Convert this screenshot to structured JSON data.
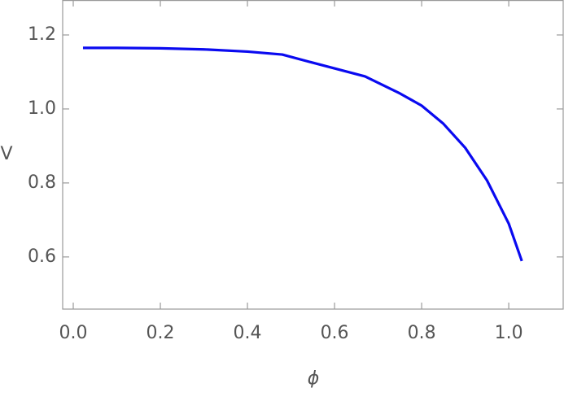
{
  "chart_data": {
    "type": "line",
    "x_label": "ϕ",
    "y_label": "V",
    "x": [
      0.0224,
      0.1,
      0.2,
      0.3,
      0.4,
      0.48,
      0.55,
      0.67,
      0.75,
      0.8,
      0.85,
      0.9,
      0.95,
      1.0,
      1.03
    ],
    "series": [
      {
        "name": "V",
        "color": "#0a0af0",
        "values": [
          1.165,
          1.165,
          1.164,
          1.161,
          1.155,
          1.147,
          1.125,
          1.088,
          1.042,
          1.009,
          0.96,
          0.895,
          0.807,
          0.69,
          0.589
        ]
      }
    ],
    "xlim": [
      -0.0243,
      1.125
    ],
    "ylim": [
      0.459,
      1.2945
    ],
    "xticks": [
      {
        "value": 0.0,
        "label": "0.0"
      },
      0.2,
      0.4,
      0.6,
      0.8,
      {
        "value": 1.0,
        "label": "1.0"
      }
    ],
    "yticks": [
      0.6,
      0.8,
      {
        "value": 1.0,
        "label": "1.0"
      },
      1.2
    ]
  }
}
